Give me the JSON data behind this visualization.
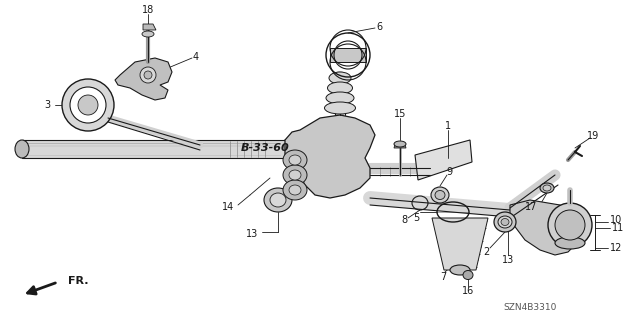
{
  "background_color": "#ffffff",
  "diagram_code": "SZN4B3310",
  "ref_code": "B-33-60",
  "dark": "#1a1a1a",
  "gray": "#888888",
  "light_gray": "#cccccc",
  "mid_gray": "#aaaaaa"
}
